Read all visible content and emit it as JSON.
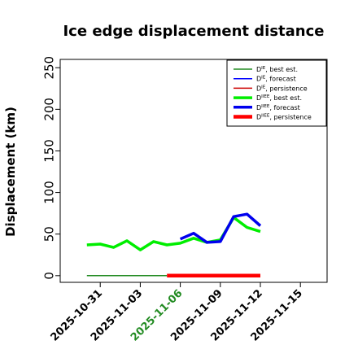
{
  "chart_data": {
    "type": "line",
    "title": "Ice edge displacement distance",
    "ylabel": "Displacement (km)",
    "xlabel": "",
    "ylim": [
      -8,
      260
    ],
    "xlim": [
      "2025-10-28",
      "2025-11-17"
    ],
    "yticks": [
      0,
      50,
      100,
      150,
      200,
      250
    ],
    "xticks": [
      {
        "label": "2025-10-31",
        "date": "2025-10-31",
        "color": "#000000"
      },
      {
        "label": "2025-11-03",
        "date": "2025-11-03",
        "color": "#000000"
      },
      {
        "label": "2025-11-06",
        "date": "2025-11-06",
        "color": "#228b22"
      },
      {
        "label": "2025-11-09",
        "date": "2025-11-09",
        "color": "#000000"
      },
      {
        "label": "2025-11-12",
        "date": "2025-11-12",
        "color": "#000000"
      },
      {
        "label": "2025-11-15",
        "date": "2025-11-15",
        "color": "#000000"
      }
    ],
    "grid": false,
    "legend_position": "top-right",
    "series": [
      {
        "name": "D^IE, best est.",
        "label_base": "D",
        "label_sup": "IE",
        "label_rest": ", best est.",
        "color": "#228b22",
        "width": 1.5,
        "x": [
          "2025-10-30",
          "2025-11-05"
        ],
        "y": [
          0,
          0
        ]
      },
      {
        "name": "D^IE, forecast",
        "label_base": "D",
        "label_sup": "IE",
        "label_rest": ", forecast",
        "color": "#0000ff",
        "width": 1.5,
        "x": [],
        "y": []
      },
      {
        "name": "D^IE, persistence",
        "label_base": "D",
        "label_sup": "IE",
        "label_rest": ", persistence",
        "color": "#cc0000",
        "width": 1.5,
        "x": [],
        "y": []
      },
      {
        "name": "D^IIEE, best est.",
        "label_base": "D",
        "label_sup": "IIEE",
        "label_rest": ", best est.",
        "color": "#00ee00",
        "width": 3.5,
        "x": [
          "2025-10-30",
          "2025-10-31",
          "2025-11-01",
          "2025-11-02",
          "2025-11-03",
          "2025-11-04",
          "2025-11-05",
          "2025-11-06",
          "2025-11-07",
          "2025-11-08",
          "2025-11-09",
          "2025-11-10",
          "2025-11-11",
          "2025-11-12"
        ],
        "y": [
          37,
          38,
          34,
          42,
          31,
          41,
          37,
          39,
          45,
          40,
          43,
          70,
          58,
          53
        ]
      },
      {
        "name": "D^IIEE, forecast",
        "label_base": "D",
        "label_sup": "IIEE",
        "label_rest": ", forecast",
        "color": "#0000ee",
        "width": 3.5,
        "x": [
          "2025-11-06",
          "2025-11-07",
          "2025-11-08",
          "2025-11-09",
          "2025-11-10",
          "2025-11-11",
          "2025-11-12"
        ],
        "y": [
          44,
          51,
          40,
          41,
          71,
          74,
          60
        ]
      },
      {
        "name": "D^IIEE, persistence",
        "label_base": "D",
        "label_sup": "IIEE",
        "label_rest": ", persistence",
        "color": "#ff0000",
        "width": 4.5,
        "x": [
          "2025-11-05",
          "2025-11-12"
        ],
        "y": [
          0,
          0
        ]
      }
    ]
  }
}
